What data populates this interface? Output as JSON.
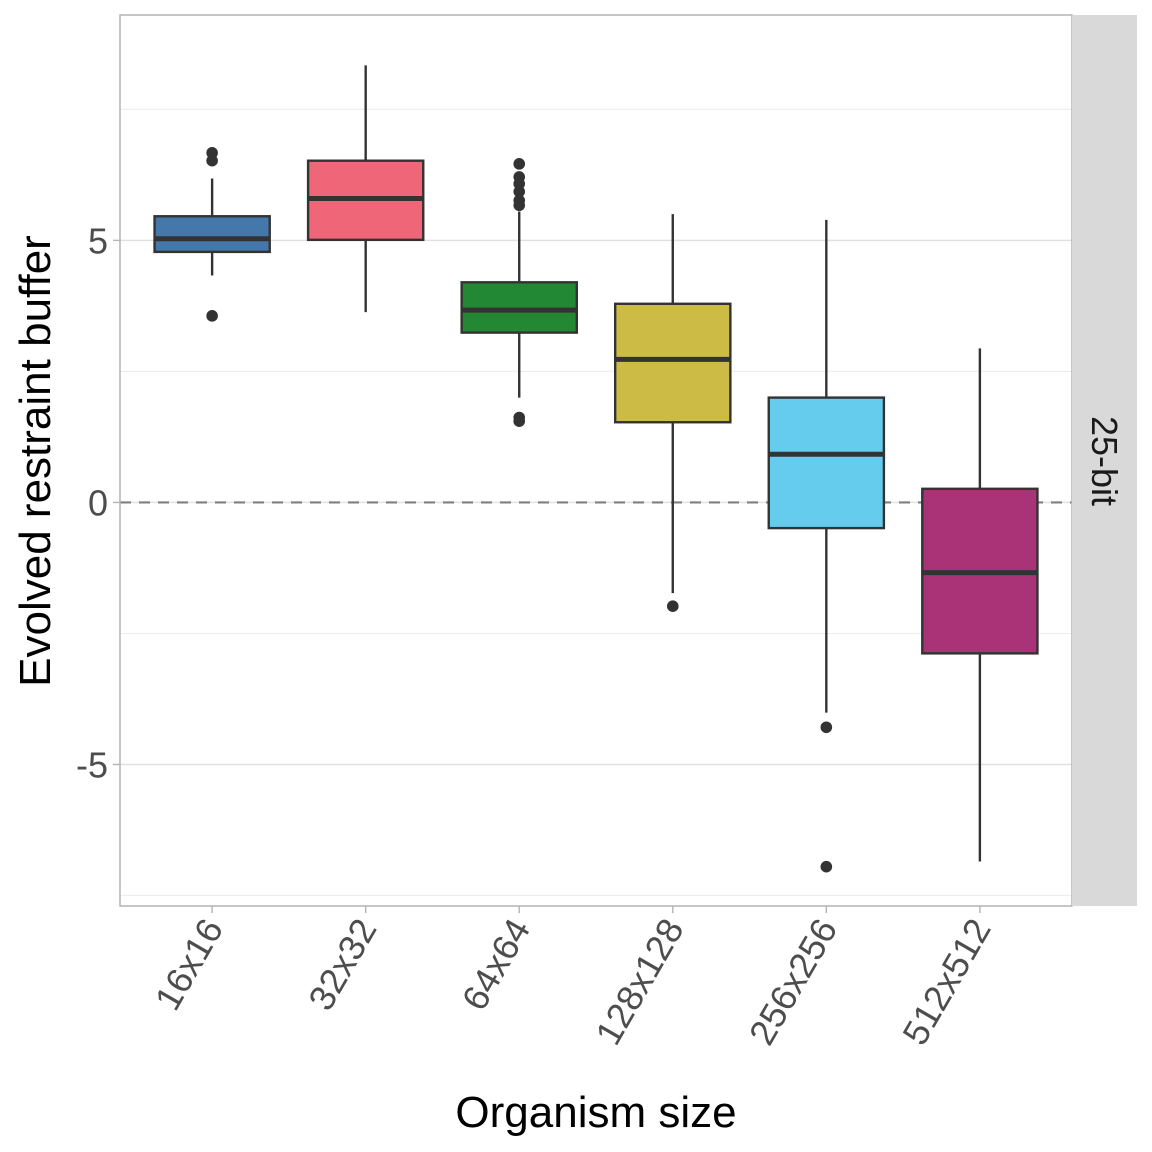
{
  "chart_data": {
    "type": "box",
    "title": "",
    "xlabel": "Organism size",
    "ylabel": "Evolved restraint buffer",
    "facet_label": "25-bit",
    "ylim": [
      -7.7,
      9.3
    ],
    "yticks": [
      -5,
      0,
      5
    ],
    "ytick_labels": [
      "-5",
      "0",
      "5"
    ],
    "grid": true,
    "reference_line": {
      "y": 0,
      "style": "dashed",
      "color": "#7f7f7f"
    },
    "categories": [
      "16x16",
      "32x32",
      "64x64",
      "128x128",
      "256x256",
      "512x512"
    ],
    "series": [
      {
        "name": "16x16",
        "color": "#4477aa",
        "whisker_low": 4.33,
        "q1": 4.78,
        "median": 5.03,
        "q3": 5.46,
        "whisker_high": 6.18,
        "outliers": [
          6.67,
          6.52,
          3.56
        ]
      },
      {
        "name": "32x32",
        "color": "#ee6677",
        "whisker_low": 3.63,
        "q1": 5.01,
        "median": 5.8,
        "q3": 6.52,
        "whisker_high": 8.34,
        "outliers": []
      },
      {
        "name": "64x64",
        "color": "#228833",
        "whisker_low": 2.0,
        "q1": 3.24,
        "median": 3.67,
        "q3": 4.2,
        "whisker_high": 5.55,
        "outliers": [
          6.46,
          6.21,
          6.08,
          5.93,
          5.76,
          5.67,
          1.62,
          1.55
        ]
      },
      {
        "name": "128x128",
        "color": "#ccbb44",
        "whisker_low": -1.73,
        "q1": 1.53,
        "median": 2.73,
        "q3": 3.79,
        "whisker_high": 5.5,
        "outliers": [
          -1.98
        ]
      },
      {
        "name": "256x256",
        "color": "#66ccee",
        "whisker_low": -4.01,
        "q1": -0.49,
        "median": 0.92,
        "q3": 2.0,
        "whisker_high": 5.39,
        "outliers": [
          -4.29,
          -6.95
        ]
      },
      {
        "name": "512x512",
        "color": "#aa3377",
        "whisker_low": -6.85,
        "q1": -2.88,
        "median": -1.34,
        "q3": 0.26,
        "whisker_high": 2.94,
        "outliers": []
      }
    ]
  }
}
